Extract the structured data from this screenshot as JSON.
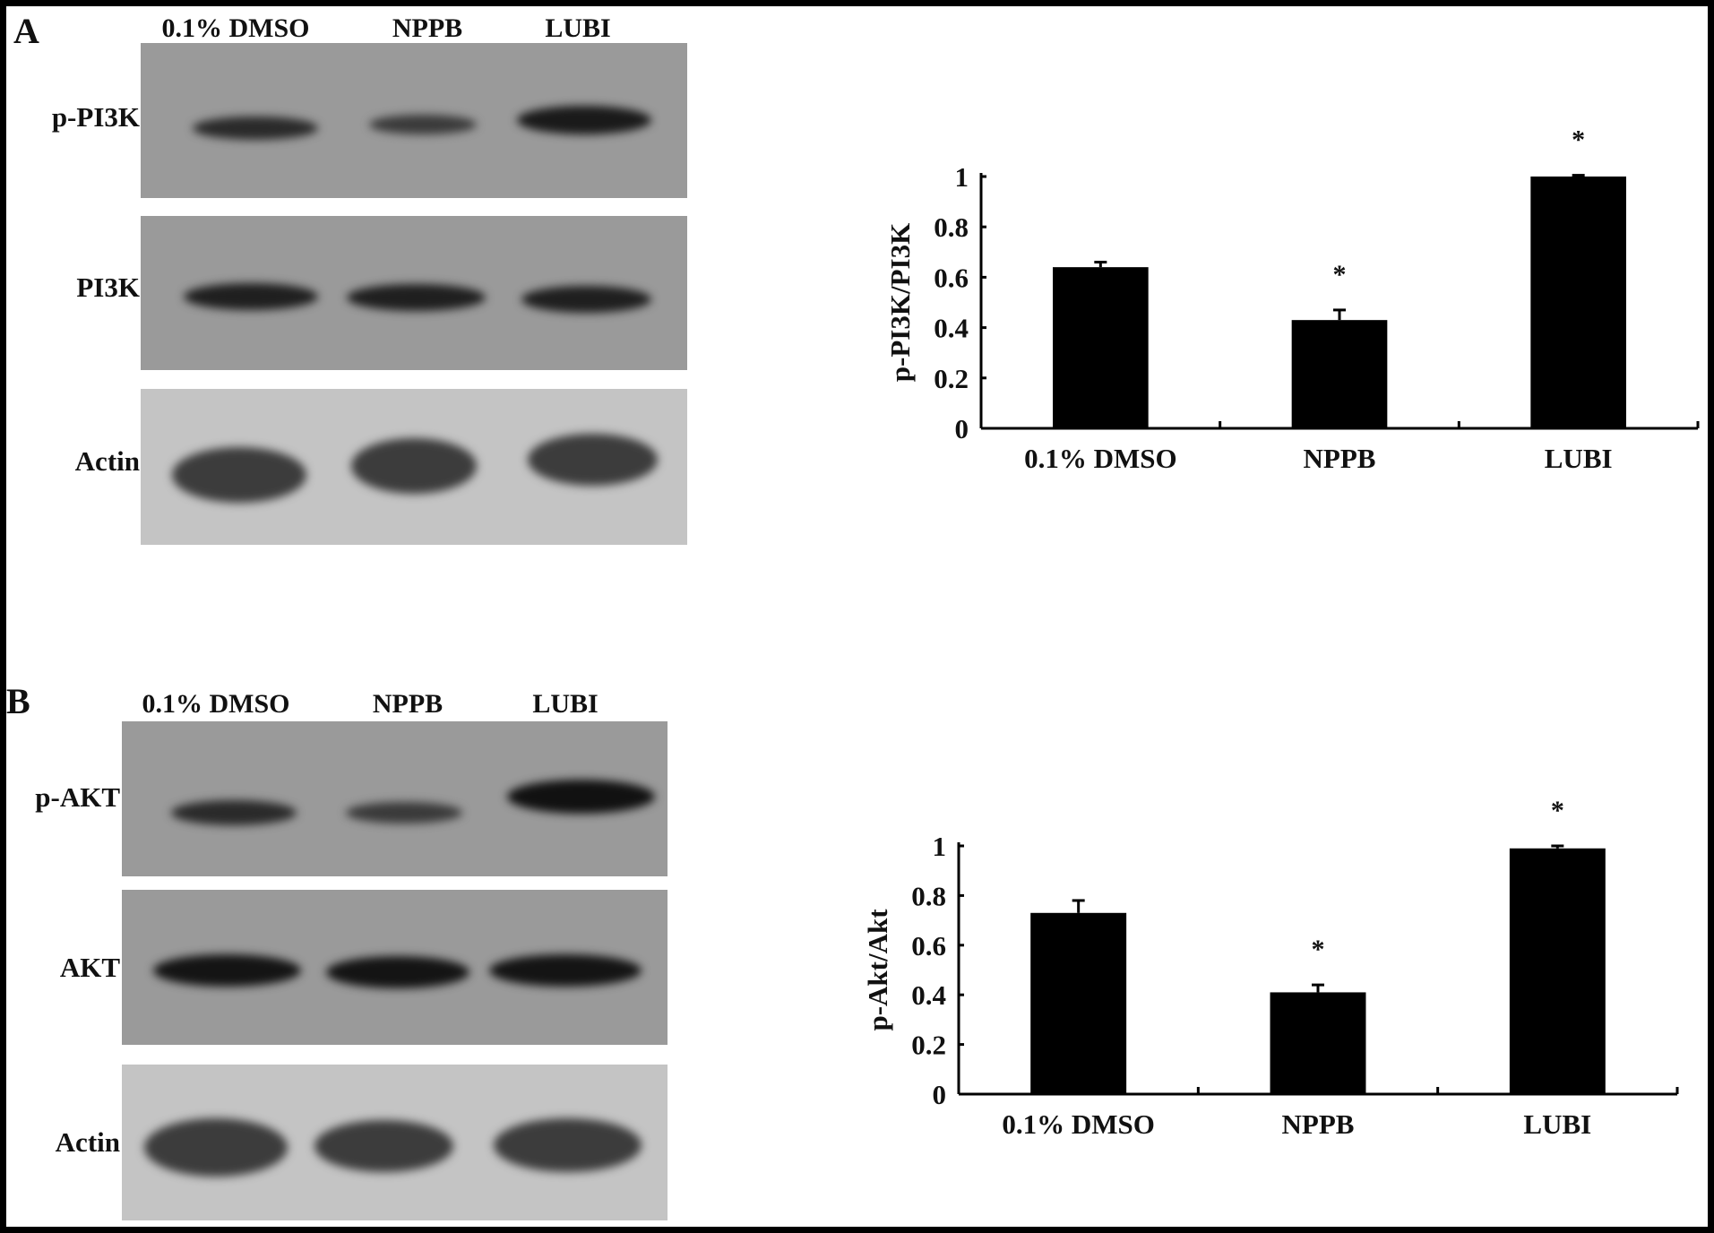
{
  "panels": [
    {
      "letter": "A",
      "lanes": [
        "0.1% DMSO",
        "NPPB",
        "LUBI"
      ],
      "blot_rows": [
        "p-PI3K",
        "PI3K",
        "Actin"
      ]
    },
    {
      "letter": "B",
      "lanes": [
        "0.1% DMSO",
        "NPPB",
        "LUBI"
      ],
      "blot_rows": [
        "p-AKT",
        "AKT",
        "Actin"
      ]
    }
  ],
  "chart_data": [
    {
      "type": "bar",
      "categories": [
        "0.1% DMSO",
        "NPPB",
        "LUBI"
      ],
      "values": [
        0.64,
        0.43,
        1.0
      ],
      "errors": [
        0.02,
        0.04,
        0.005
      ],
      "significance": [
        "",
        "*",
        "*"
      ],
      "ylabel": "p-PI3K/PI3K",
      "xlabel": "",
      "ylim": [
        0,
        1
      ],
      "yticks": [
        "0",
        "0.2",
        "0.4",
        "0.6",
        "0.8",
        "1"
      ],
      "bar_color": "#000000",
      "grid": false
    },
    {
      "type": "bar",
      "categories": [
        "0.1% DMSO",
        "NPPB",
        "LUBI"
      ],
      "values": [
        0.73,
        0.41,
        0.99
      ],
      "errors": [
        0.05,
        0.03,
        0.01
      ],
      "significance": [
        "",
        "*",
        "*"
      ],
      "ylabel": "p-Akt/Akt",
      "xlabel": "",
      "ylim": [
        0,
        1
      ],
      "yticks": [
        "0",
        "0.2",
        "0.4",
        "0.6",
        "0.8",
        "1"
      ],
      "bar_color": "#000000",
      "grid": false
    }
  ]
}
